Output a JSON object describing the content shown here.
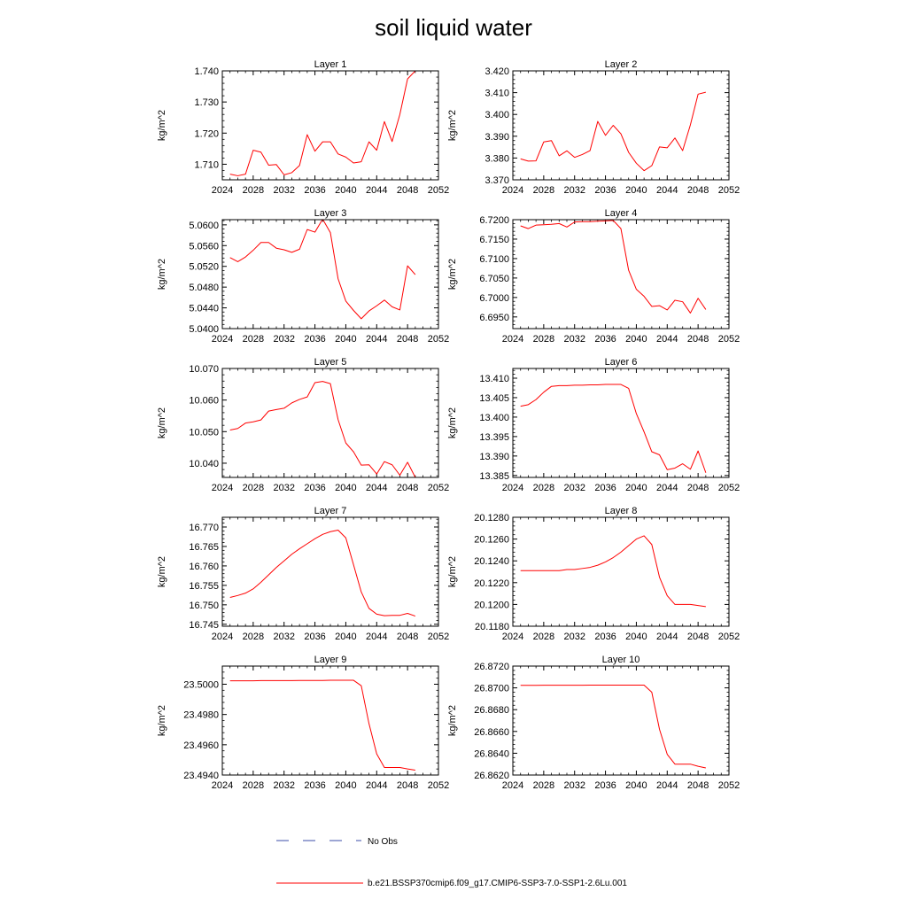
{
  "figure": {
    "title": "soil liquid water"
  },
  "legend": {
    "obs_label": "No Obs",
    "model_label": "b.e21.BSSP370cmip6.f09_g17.CMIP6-SSP3-7.0-SSP1-2.6Lu.001",
    "obs_color": "#3b4ea8",
    "model_color": "#ff0000"
  },
  "chart_data": [
    {
      "type": "line",
      "title": "Layer 1",
      "xlabel": "",
      "ylabel": "kg/m^2",
      "xlim": [
        2024,
        2052
      ],
      "xticks": [
        "2024",
        "2028",
        "2032",
        "2036",
        "2040",
        "2044",
        "2048",
        "2052"
      ],
      "ylim": [
        1.705,
        1.74
      ],
      "yticks": [
        "1.710",
        "1.720",
        "1.730",
        "1.740"
      ],
      "series": [
        {
          "name": "b.e21.BSSP370cmip6.f09_g17.CMIP6-SSP3-7.0-SSP1-2.6Lu.001",
          "x": [
            2025,
            2026,
            2027,
            2028,
            2029,
            2030,
            2031,
            2032,
            2033,
            2034,
            2035,
            2036,
            2037,
            2038,
            2039,
            2040,
            2041,
            2042,
            2043,
            2044,
            2045,
            2046,
            2047,
            2048,
            2049
          ],
          "values": [
            1.7068,
            1.7063,
            1.7068,
            1.7145,
            1.7139,
            1.7097,
            1.7099,
            1.7066,
            1.7073,
            1.7096,
            1.7195,
            1.7142,
            1.7172,
            1.7172,
            1.7133,
            1.7123,
            1.7104,
            1.7108,
            1.7172,
            1.7145,
            1.7237,
            1.7173,
            1.726,
            1.7374,
            1.74
          ]
        }
      ]
    },
    {
      "type": "line",
      "title": "Layer 2",
      "xlabel": "",
      "ylabel": "kg/m^2",
      "xlim": [
        2024,
        2052
      ],
      "xticks": [
        "2024",
        "2028",
        "2032",
        "2036",
        "2040",
        "2044",
        "2048",
        "2052"
      ],
      "ylim": [
        3.37,
        3.42
      ],
      "yticks": [
        "3.370",
        "3.380",
        "3.390",
        "3.400",
        "3.410",
        "3.420"
      ],
      "series": [
        {
          "name": "b.e21.BSSP370cmip6.f09_g17.CMIP6-SSP3-7.0-SSP1-2.6Lu.001",
          "x": [
            2025,
            2026,
            2027,
            2028,
            2029,
            2030,
            2031,
            2032,
            2033,
            2034,
            2035,
            2036,
            2037,
            2038,
            2039,
            2040,
            2041,
            2042,
            2043,
            2044,
            2045,
            2046,
            2047,
            2048,
            2049
          ],
          "values": [
            3.3796,
            3.3786,
            3.3787,
            3.3874,
            3.388,
            3.381,
            3.3833,
            3.3803,
            3.3816,
            3.3834,
            3.3968,
            3.3904,
            3.395,
            3.3911,
            3.3826,
            3.3776,
            3.3742,
            3.3765,
            3.3851,
            3.3847,
            3.3892,
            3.3834,
            3.3952,
            3.4093,
            3.4102
          ]
        }
      ]
    },
    {
      "type": "line",
      "title": "Layer 3",
      "xlabel": "",
      "ylabel": "kg/m^2",
      "xlim": [
        2024,
        2052
      ],
      "xticks": [
        "2024",
        "2028",
        "2032",
        "2036",
        "2040",
        "2044",
        "2048",
        "2052"
      ],
      "ylim": [
        5.04,
        5.061
      ],
      "yticks": [
        "5.0400",
        "5.0440",
        "5.0480",
        "5.0520",
        "5.0560",
        "5.0600"
      ],
      "series": [
        {
          "name": "b.e21.BSSP370cmip6.f09_g17.CMIP6-SSP3-7.0-SSP1-2.6Lu.001",
          "x": [
            2025,
            2026,
            2027,
            2028,
            2029,
            2030,
            2031,
            2032,
            2033,
            2034,
            2035,
            2036,
            2037,
            2038,
            2039,
            2040,
            2041,
            2042,
            2043,
            2044,
            2045,
            2046,
            2047,
            2048,
            2049
          ],
          "values": [
            5.0537,
            5.0529,
            5.0538,
            5.0551,
            5.0566,
            5.0566,
            5.0555,
            5.0552,
            5.0547,
            5.0553,
            5.0591,
            5.0586,
            5.0611,
            5.0585,
            5.0496,
            5.0453,
            5.0435,
            5.0419,
            5.0434,
            5.0444,
            5.0455,
            5.0442,
            5.0436,
            5.0521,
            5.0504
          ]
        }
      ]
    },
    {
      "type": "line",
      "title": "Layer 4",
      "xlabel": "",
      "ylabel": "kg/m^2",
      "xlim": [
        2024,
        2052
      ],
      "xticks": [
        "2024",
        "2028",
        "2032",
        "2036",
        "2040",
        "2044",
        "2048",
        "2052"
      ],
      "ylim": [
        6.692,
        6.72
      ],
      "yticks": [
        "6.6950",
        "6.7000",
        "6.7050",
        "6.7100",
        "6.7150",
        "6.7200"
      ],
      "series": [
        {
          "name": "b.e21.BSSP370cmip6.f09_g17.CMIP6-SSP3-7.0-SSP1-2.6Lu.001",
          "x": [
            2025,
            2026,
            2027,
            2028,
            2029,
            2030,
            2031,
            2032,
            2033,
            2034,
            2035,
            2036,
            2037,
            2038,
            2039,
            2040,
            2041,
            2042,
            2043,
            2044,
            2045,
            2046,
            2047,
            2048,
            2049
          ],
          "values": [
            6.7184,
            6.7177,
            6.7186,
            6.7187,
            6.7188,
            6.719,
            6.7181,
            6.7194,
            6.7195,
            6.7195,
            6.7196,
            6.7197,
            6.7198,
            6.7177,
            6.707,
            6.7021,
            6.7003,
            6.6977,
            6.6979,
            6.6968,
            6.6993,
            6.6989,
            6.696,
            6.6998,
            6.6969
          ]
        }
      ]
    },
    {
      "type": "line",
      "title": "Layer 5",
      "xlabel": "",
      "ylabel": "kg/m^2",
      "xlim": [
        2024,
        2052
      ],
      "xticks": [
        "2024",
        "2028",
        "2032",
        "2036",
        "2040",
        "2044",
        "2048",
        "2052"
      ],
      "ylim": [
        10.0355,
        10.07
      ],
      "yticks": [
        "10.040",
        "10.050",
        "10.060",
        "10.070"
      ],
      "series": [
        {
          "name": "b.e21.BSSP370cmip6.f09_g17.CMIP6-SSP3-7.0-SSP1-2.6Lu.001",
          "x": [
            2025,
            2026,
            2027,
            2028,
            2029,
            2030,
            2031,
            2032,
            2033,
            2034,
            2035,
            2036,
            2037,
            2038,
            2039,
            2040,
            2041,
            2042,
            2043,
            2044,
            2045,
            2046,
            2047,
            2048,
            2049
          ],
          "values": [
            10.0505,
            10.051,
            10.0527,
            10.0531,
            10.0537,
            10.0565,
            10.057,
            10.0574,
            10.0591,
            10.0602,
            10.061,
            10.0655,
            10.0659,
            10.0652,
            10.0538,
            10.0464,
            10.0436,
            10.0394,
            10.0395,
            10.0366,
            10.0405,
            10.0395,
            10.0362,
            10.0403,
            10.0355
          ]
        }
      ]
    },
    {
      "type": "line",
      "title": "Layer 6",
      "xlabel": "",
      "ylabel": "kg/m^2",
      "xlim": [
        2024,
        2052
      ],
      "xticks": [
        "2024",
        "2028",
        "2032",
        "2036",
        "2040",
        "2044",
        "2048",
        "2052"
      ],
      "ylim": [
        13.3845,
        13.4125
      ],
      "yticks": [
        "13.385",
        "13.390",
        "13.395",
        "13.400",
        "13.405",
        "13.410"
      ],
      "series": [
        {
          "name": "b.e21.BSSP370cmip6.f09_g17.CMIP6-SSP3-7.0-SSP1-2.6Lu.001",
          "x": [
            2025,
            2026,
            2027,
            2028,
            2029,
            2030,
            2031,
            2032,
            2033,
            2034,
            2035,
            2036,
            2037,
            2038,
            2039,
            2040,
            2041,
            2042,
            2043,
            2044,
            2045,
            2046,
            2047,
            2048,
            2049
          ],
          "values": [
            13.4028,
            13.4032,
            13.4045,
            13.4064,
            13.4079,
            13.4081,
            13.4081,
            13.4082,
            13.4082,
            13.4083,
            13.4083,
            13.4084,
            13.4084,
            13.4084,
            13.4074,
            13.4009,
            13.3962,
            13.3911,
            13.3903,
            13.3865,
            13.3869,
            13.388,
            13.3866,
            13.3913,
            13.3857
          ]
        }
      ]
    },
    {
      "type": "line",
      "title": "Layer 7",
      "xlabel": "",
      "ylabel": "kg/m^2",
      "xlim": [
        2024,
        2052
      ],
      "xticks": [
        "2024",
        "2028",
        "2032",
        "2036",
        "2040",
        "2044",
        "2048",
        "2052"
      ],
      "ylim": [
        16.7445,
        16.7725
      ],
      "yticks": [
        "16.745",
        "16.750",
        "16.755",
        "16.760",
        "16.765",
        "16.770"
      ],
      "series": [
        {
          "name": "b.e21.BSSP370cmip6.f09_g17.CMIP6-SSP3-7.0-SSP1-2.6Lu.001",
          "x": [
            2025,
            2026,
            2027,
            2028,
            2029,
            2030,
            2031,
            2032,
            2033,
            2034,
            2035,
            2036,
            2037,
            2038,
            2039,
            2040,
            2041,
            2042,
            2043,
            2044,
            2045,
            2046,
            2047,
            2048,
            2049
          ],
          "values": [
            16.7519,
            16.7524,
            16.753,
            16.7541,
            16.7558,
            16.7577,
            16.7596,
            16.7613,
            16.763,
            16.7644,
            16.7657,
            16.767,
            16.7681,
            16.7688,
            16.7692,
            16.7672,
            16.7603,
            16.7533,
            16.7491,
            16.7476,
            16.7472,
            16.7473,
            16.7473,
            16.7478,
            16.7471
          ]
        }
      ]
    },
    {
      "type": "line",
      "title": "Layer 8",
      "xlabel": "",
      "ylabel": "kg/m^2",
      "xlim": [
        2024,
        2052
      ],
      "xticks": [
        "2024",
        "2028",
        "2032",
        "2036",
        "2040",
        "2044",
        "2048",
        "2052"
      ],
      "ylim": [
        20.118,
        20.128
      ],
      "yticks": [
        "20.1180",
        "20.1200",
        "20.1220",
        "20.1240",
        "20.1260",
        "20.1280"
      ],
      "series": [
        {
          "name": "b.e21.BSSP370cmip6.f09_g17.CMIP6-SSP3-7.0-SSP1-2.6Lu.001",
          "x": [
            2025,
            2026,
            2027,
            2028,
            2029,
            2030,
            2031,
            2032,
            2033,
            2034,
            2035,
            2036,
            2037,
            2038,
            2039,
            2040,
            2041,
            2042,
            2043,
            2044,
            2045,
            2046,
            2047,
            2048,
            2049
          ],
          "values": [
            20.1231,
            20.1231,
            20.1231,
            20.1231,
            20.1231,
            20.1231,
            20.1232,
            20.1232,
            20.1233,
            20.1234,
            20.1236,
            20.1239,
            20.1243,
            20.1248,
            20.1254,
            20.126,
            20.1263,
            20.1255,
            20.1225,
            20.1208,
            20.12,
            20.12,
            20.12,
            20.1199,
            20.1198
          ]
        }
      ]
    },
    {
      "type": "line",
      "title": "Layer 9",
      "xlabel": "",
      "ylabel": "kg/m^2",
      "xlim": [
        2024,
        2052
      ],
      "xticks": [
        "2024",
        "2028",
        "2032",
        "2036",
        "2040",
        "2044",
        "2048",
        "2052"
      ],
      "ylim": [
        23.494,
        23.5012
      ],
      "yticks": [
        "23.4940",
        "23.4960",
        "23.4980",
        "23.5000"
      ],
      "series": [
        {
          "name": "b.e21.BSSP370cmip6.f09_g17.CMIP6-SSP3-7.0-SSP1-2.6Lu.001",
          "x": [
            2025,
            2026,
            2027,
            2028,
            2029,
            2030,
            2031,
            2032,
            2033,
            2034,
            2035,
            2036,
            2037,
            2038,
            2039,
            2040,
            2041,
            2042,
            2043,
            2044,
            2045,
            2046,
            2047,
            2048,
            2049
          ],
          "values": [
            23.50023,
            23.50023,
            23.50023,
            23.50023,
            23.50024,
            23.50024,
            23.50024,
            23.50024,
            23.50024,
            23.50025,
            23.50025,
            23.50025,
            23.50025,
            23.50026,
            23.50026,
            23.50026,
            23.50026,
            23.4999,
            23.4974,
            23.4954,
            23.4945,
            23.4945,
            23.4945,
            23.4944,
            23.49432
          ]
        }
      ]
    },
    {
      "type": "line",
      "title": "Layer 10",
      "xlabel": "",
      "ylabel": "kg/m^2",
      "xlim": [
        2024,
        2052
      ],
      "xticks": [
        "2024",
        "2028",
        "2032",
        "2036",
        "2040",
        "2044",
        "2048",
        "2052"
      ],
      "ylim": [
        26.862,
        26.872
      ],
      "yticks": [
        "26.8620",
        "26.8640",
        "26.8660",
        "26.8680",
        "26.8700",
        "26.8720"
      ],
      "series": [
        {
          "name": "b.e21.BSSP370cmip6.f09_g17.CMIP6-SSP3-7.0-SSP1-2.6Lu.001",
          "x": [
            2025,
            2026,
            2027,
            2028,
            2029,
            2030,
            2031,
            2032,
            2033,
            2034,
            2035,
            2036,
            2037,
            2038,
            2039,
            2040,
            2041,
            2042,
            2043,
            2044,
            2045,
            2046,
            2047,
            2048,
            2049
          ],
          "values": [
            26.87023,
            26.87023,
            26.87023,
            26.87024,
            26.87024,
            26.87024,
            26.87024,
            26.87024,
            26.87024,
            26.87025,
            26.87025,
            26.87025,
            26.87025,
            26.87025,
            26.87025,
            26.87025,
            26.87025,
            26.8696,
            26.8662,
            26.8639,
            26.863,
            26.863,
            26.863,
            26.8628,
            26.86265
          ]
        }
      ]
    }
  ]
}
